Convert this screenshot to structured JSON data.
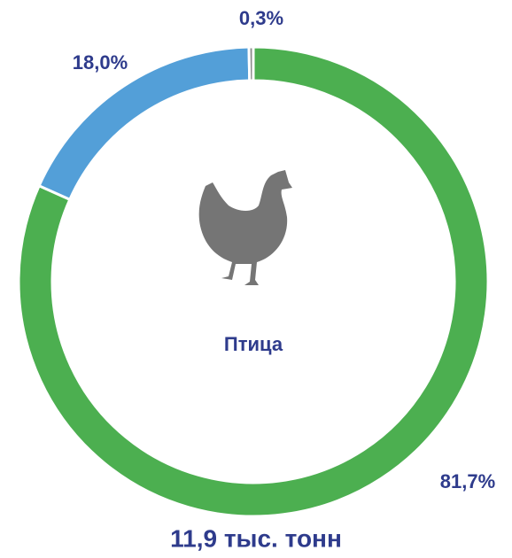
{
  "chart_data": {
    "type": "donut",
    "center_label": "Птица",
    "total_label": "11,9 тыс. тонн",
    "categories": [
      null,
      null,
      null
    ],
    "values": [
      81.7,
      18.0,
      0.3
    ],
    "value_labels": [
      "81,7%",
      "18,0%",
      "0,3%"
    ],
    "colors": [
      "#4caf50",
      "#539fd8",
      "#8c8c8c"
    ]
  }
}
